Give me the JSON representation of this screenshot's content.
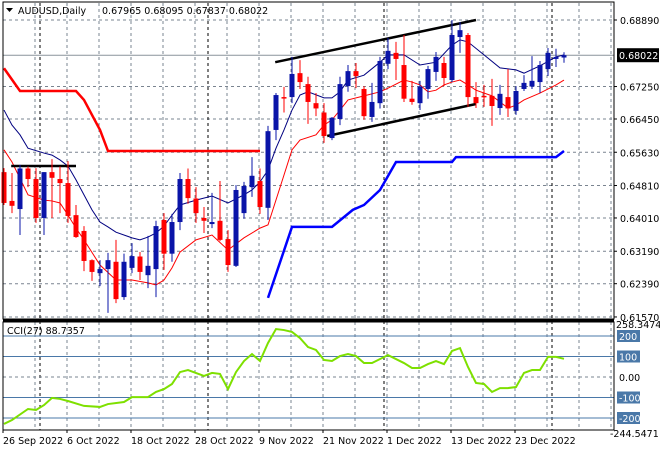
{
  "header": {
    "symbol_timeframe": "AUDUSD,Daily",
    "ohlc_text": "0.67965 0.68095 0.67837 0.68022"
  },
  "colors": {
    "bull": "#0a14a8",
    "bear": "#ff0000",
    "ma_fast": "#000080",
    "ma_slow": "#ff0000",
    "upper_band": "#ff0000",
    "lower_band": "#0000ff",
    "trendline": "#000000",
    "cci": "#7ee000",
    "cci_level": "#4a78a8",
    "grid": "#7a8490"
  },
  "chart_data": {
    "type": "candlestick",
    "title": "AUDUSD,Daily",
    "y_ticks": [
      "0.68890",
      "0.67250",
      "0.66450",
      "0.65630",
      "0.64810",
      "0.64010",
      "0.63190",
      "0.62390",
      "0.61570"
    ],
    "current_price": "0.68022",
    "ylim": [
      0.6157,
      0.6905
    ],
    "x_ticks": [
      {
        "label": "26 Sep 2022",
        "bar": 0
      },
      {
        "label": "6 Oct 2022",
        "bar": 8
      },
      {
        "label": "18 Oct 2022",
        "bar": 16
      },
      {
        "label": "28 Oct 2022",
        "bar": 24
      },
      {
        "label": "9 Nov 2022",
        "bar": 32
      },
      {
        "label": "21 Nov 2022",
        "bar": 40
      },
      {
        "label": "1 Dec 2022",
        "bar": 48
      },
      {
        "label": "13 Dec 2022",
        "bar": 56
      },
      {
        "label": "23 Dec 2022",
        "bar": 64
      }
    ],
    "month_separators": [
      5,
      26,
      48,
      69
    ],
    "ohlc": [
      [
        0.6514,
        0.6524,
        0.6433,
        0.6438
      ],
      [
        0.6443,
        0.6512,
        0.6413,
        0.6431
      ],
      [
        0.6423,
        0.6532,
        0.6359,
        0.6523
      ],
      [
        0.6523,
        0.6528,
        0.6477,
        0.6497
      ],
      [
        0.6497,
        0.6524,
        0.6389,
        0.6401
      ],
      [
        0.6401,
        0.6514,
        0.6359,
        0.6514
      ],
      [
        0.6514,
        0.6546,
        0.6401,
        0.65
      ],
      [
        0.6497,
        0.6528,
        0.6413,
        0.6487
      ],
      [
        0.6487,
        0.6541,
        0.6389,
        0.6406
      ],
      [
        0.6408,
        0.6433,
        0.6352,
        0.6354
      ],
      [
        0.6369,
        0.6381,
        0.627,
        0.6295
      ],
      [
        0.6297,
        0.6299,
        0.6246,
        0.6268
      ],
      [
        0.6265,
        0.6297,
        0.6233,
        0.6275
      ],
      [
        0.6275,
        0.6315,
        0.6167,
        0.6297
      ],
      [
        0.6293,
        0.6347,
        0.6191,
        0.6201
      ],
      [
        0.6206,
        0.6313,
        0.6199,
        0.6293
      ],
      [
        0.6278,
        0.6339,
        0.6265,
        0.6307
      ],
      [
        0.6306,
        0.6317,
        0.6248,
        0.6268
      ],
      [
        0.626,
        0.6357,
        0.6228,
        0.6283
      ],
      [
        0.6275,
        0.6394,
        0.6206,
        0.6381
      ],
      [
        0.6396,
        0.6413,
        0.6273,
        0.6313
      ],
      [
        0.6313,
        0.6411,
        0.6293,
        0.6391
      ],
      [
        0.6391,
        0.6512,
        0.6371,
        0.6497
      ],
      [
        0.6497,
        0.6523,
        0.6436,
        0.645
      ],
      [
        0.6449,
        0.6477,
        0.6389,
        0.6413
      ],
      [
        0.6401,
        0.6428,
        0.6364,
        0.6394
      ],
      [
        0.6386,
        0.6463,
        0.6376,
        0.6391
      ],
      [
        0.6394,
        0.6492,
        0.6344,
        0.6347
      ],
      [
        0.6349,
        0.6371,
        0.6268,
        0.6285
      ],
      [
        0.6283,
        0.6482,
        0.628,
        0.647
      ],
      [
        0.6413,
        0.649,
        0.6399,
        0.648
      ],
      [
        0.6477,
        0.6551,
        0.6453,
        0.6505
      ],
      [
        0.6492,
        0.6523,
        0.6411,
        0.6428
      ],
      [
        0.6426,
        0.6628,
        0.6396,
        0.6615
      ],
      [
        0.6618,
        0.6709,
        0.6593,
        0.6704
      ],
      [
        0.6699,
        0.6724,
        0.6661,
        0.6698
      ],
      [
        0.6699,
        0.6798,
        0.6684,
        0.6756
      ],
      [
        0.6758,
        0.679,
        0.6719,
        0.6736
      ],
      [
        0.6731,
        0.6749,
        0.6633,
        0.6687
      ],
      [
        0.6684,
        0.6709,
        0.6652,
        0.6671
      ],
      [
        0.6661,
        0.6684,
        0.6586,
        0.6603
      ],
      [
        0.6598,
        0.665,
        0.6593,
        0.6648
      ],
      [
        0.6645,
        0.6749,
        0.663,
        0.6731
      ],
      [
        0.6726,
        0.6778,
        0.6712,
        0.6763
      ],
      [
        0.6763,
        0.6783,
        0.6721,
        0.6751
      ],
      [
        0.6719,
        0.6726,
        0.6643,
        0.6652
      ],
      [
        0.665,
        0.6734,
        0.6638,
        0.6687
      ],
      [
        0.6684,
        0.6798,
        0.6671,
        0.6788
      ],
      [
        0.6781,
        0.6845,
        0.6768,
        0.6813
      ],
      [
        0.6808,
        0.6835,
        0.6741,
        0.6793
      ],
      [
        0.6778,
        0.6852,
        0.6687,
        0.6695
      ],
      [
        0.6695,
        0.6739,
        0.668,
        0.6687
      ],
      [
        0.6684,
        0.6739,
        0.6667,
        0.6725
      ],
      [
        0.6719,
        0.6776,
        0.6695,
        0.6768
      ],
      [
        0.6761,
        0.681,
        0.6739,
        0.6798
      ],
      [
        0.6783,
        0.6798,
        0.6726,
        0.6746
      ],
      [
        0.6741,
        0.6889,
        0.6736,
        0.6852
      ],
      [
        0.6847,
        0.6884,
        0.6808,
        0.6864
      ],
      [
        0.6852,
        0.6857,
        0.6675,
        0.6699
      ],
      [
        0.6699,
        0.6736,
        0.6672,
        0.6684
      ],
      [
        0.6702,
        0.6729,
        0.6675,
        0.6699
      ],
      [
        0.6702,
        0.6744,
        0.6628,
        0.6677
      ],
      [
        0.6672,
        0.6729,
        0.6655,
        0.6707
      ],
      [
        0.6699,
        0.6768,
        0.665,
        0.6671
      ],
      [
        0.6665,
        0.6726,
        0.6655,
        0.6714
      ],
      [
        0.6719,
        0.6753,
        0.6714,
        0.6734
      ],
      [
        0.6725,
        0.68,
        0.6719,
        0.6739
      ],
      [
        0.6736,
        0.6788,
        0.6709,
        0.6778
      ],
      [
        0.6768,
        0.682,
        0.6751,
        0.6808
      ],
      [
        0.6793,
        0.6818,
        0.6773,
        0.6798
      ],
      [
        0.67965,
        0.68095,
        0.67837,
        0.68022
      ]
    ],
    "overlays": [
      {
        "kind": "ma_fast",
        "points": [
          [
            0,
            0.6667
          ],
          [
            1,
            0.663
          ],
          [
            2,
            0.6606
          ],
          [
            3,
            0.6573
          ],
          [
            5,
            0.6561
          ],
          [
            6,
            0.6556
          ],
          [
            7,
            0.6544
          ],
          [
            8,
            0.6529
          ],
          [
            9,
            0.6495
          ],
          [
            10,
            0.6458
          ],
          [
            11,
            0.6421
          ],
          [
            12,
            0.6391
          ],
          [
            13,
            0.6379
          ],
          [
            14,
            0.6366
          ],
          [
            16,
            0.6352
          ],
          [
            17,
            0.6347
          ],
          [
            18,
            0.6354
          ],
          [
            19,
            0.6364
          ],
          [
            20,
            0.6381
          ],
          [
            21,
            0.6408
          ],
          [
            22,
            0.6433
          ],
          [
            24,
            0.6445
          ],
          [
            26,
            0.6455
          ],
          [
            28,
            0.6438
          ],
          [
            30,
            0.6458
          ],
          [
            31,
            0.647
          ],
          [
            32,
            0.649
          ],
          [
            33,
            0.6519
          ],
          [
            34,
            0.6573
          ],
          [
            35,
            0.6618
          ],
          [
            36,
            0.6667
          ],
          [
            37,
            0.6704
          ],
          [
            38,
            0.6712
          ],
          [
            40,
            0.6697
          ],
          [
            41,
            0.6697
          ],
          [
            42,
            0.6712
          ],
          [
            43,
            0.6741
          ],
          [
            45,
            0.6753
          ],
          [
            47,
            0.6785
          ],
          [
            48,
            0.6803
          ],
          [
            50,
            0.6803
          ],
          [
            52,
            0.6778
          ],
          [
            54,
            0.6785
          ],
          [
            56,
            0.6827
          ],
          [
            57,
            0.684
          ],
          [
            58,
            0.6835
          ],
          [
            60,
            0.6803
          ],
          [
            62,
            0.6771
          ],
          [
            64,
            0.6766
          ],
          [
            65,
            0.6758
          ],
          [
            67,
            0.6776
          ],
          [
            69,
            0.6798
          ],
          [
            70,
            0.6803
          ]
        ]
      },
      {
        "kind": "ma_slow",
        "points": [
          [
            0,
            0.6569
          ],
          [
            1,
            0.6539
          ],
          [
            3,
            0.6458
          ],
          [
            5,
            0.6445
          ],
          [
            6,
            0.6443
          ],
          [
            7,
            0.6438
          ],
          [
            8,
            0.6408
          ],
          [
            9,
            0.6376
          ],
          [
            10,
            0.6347
          ],
          [
            12,
            0.6285
          ],
          [
            14,
            0.6248
          ],
          [
            16,
            0.6248
          ],
          [
            18,
            0.6241
          ],
          [
            19,
            0.6236
          ],
          [
            20,
            0.6248
          ],
          [
            21,
            0.6278
          ],
          [
            22,
            0.6317
          ],
          [
            24,
            0.6347
          ],
          [
            26,
            0.6359
          ],
          [
            28,
            0.6322
          ],
          [
            30,
            0.6352
          ],
          [
            32,
            0.6376
          ],
          [
            33,
            0.6384
          ],
          [
            35,
            0.6507
          ],
          [
            36,
            0.6569
          ],
          [
            37,
            0.6593
          ],
          [
            39,
            0.6606
          ],
          [
            40,
            0.663
          ],
          [
            41,
            0.6643
          ],
          [
            42,
            0.6667
          ],
          [
            43,
            0.6692
          ],
          [
            45,
            0.6702
          ],
          [
            47,
            0.6712
          ],
          [
            48,
            0.6721
          ],
          [
            50,
            0.6741
          ],
          [
            51,
            0.6736
          ],
          [
            52,
            0.6729
          ],
          [
            53,
            0.6712
          ],
          [
            54,
            0.6716
          ],
          [
            55,
            0.6729
          ],
          [
            56,
            0.6736
          ],
          [
            57,
            0.6741
          ],
          [
            58,
            0.6729
          ],
          [
            59,
            0.6716
          ],
          [
            61,
            0.6702
          ],
          [
            63,
            0.6672
          ],
          [
            64,
            0.6679
          ],
          [
            65,
            0.6692
          ],
          [
            67,
            0.6709
          ],
          [
            69,
            0.6729
          ],
          [
            70,
            0.6741
          ]
        ]
      },
      {
        "kind": "upper_band",
        "points": [
          [
            0,
            0.677
          ],
          [
            2,
            0.6714
          ],
          [
            9,
            0.6714
          ],
          [
            10,
            0.6692
          ],
          [
            12,
            0.6618
          ],
          [
            13,
            0.6566
          ],
          [
            32,
            0.6566
          ]
        ]
      },
      {
        "kind": "lower_band",
        "points": [
          [
            33,
            0.6204
          ],
          [
            36,
            0.6379
          ],
          [
            41,
            0.6379
          ],
          [
            43.6,
            0.6421
          ],
          [
            45,
            0.6433
          ],
          [
            47,
            0.647
          ],
          [
            49,
            0.6539
          ],
          [
            56,
            0.6539
          ],
          [
            56.5,
            0.6551
          ],
          [
            69,
            0.6551
          ],
          [
            70,
            0.6566
          ]
        ]
      },
      {
        "kind": "trendline",
        "points": [
          [
            33.9,
            0.6785
          ],
          [
            59,
            0.6889
          ]
        ]
      },
      {
        "kind": "trendline",
        "points": [
          [
            40.4,
            0.6603
          ],
          [
            59,
            0.6682
          ]
        ]
      },
      {
        "kind": "trendline",
        "points": [
          [
            0.9,
            0.6529
          ],
          [
            9,
            0.6529
          ]
        ]
      }
    ],
    "indicator": {
      "label": "CCI(27) 88.7357",
      "ylim": [
        -244.5471,
        258.3474
      ],
      "max_label": "258.3474",
      "min_label": "-244.5471",
      "levels": [
        "200",
        "100",
        "0.00",
        "-100",
        "-200"
      ],
      "level_values": [
        200,
        100,
        0,
        -100,
        -200
      ],
      "points": [
        [
          0,
          -229
        ],
        [
          1,
          -210
        ],
        [
          3,
          -156
        ],
        [
          4,
          -161
        ],
        [
          5,
          -137
        ],
        [
          6,
          -102
        ],
        [
          7,
          -107
        ],
        [
          8,
          -117
        ],
        [
          10,
          -141
        ],
        [
          12,
          -146
        ],
        [
          13,
          -132
        ],
        [
          15,
          -122
        ],
        [
          16,
          -98
        ],
        [
          18,
          -98
        ],
        [
          19,
          -73
        ],
        [
          20,
          -59
        ],
        [
          21,
          -34
        ],
        [
          22,
          24
        ],
        [
          23,
          34
        ],
        [
          25,
          5
        ],
        [
          26,
          20
        ],
        [
          27,
          15
        ],
        [
          28,
          -59
        ],
        [
          29,
          24
        ],
        [
          30,
          78
        ],
        [
          31,
          112
        ],
        [
          32,
          78
        ],
        [
          33,
          166
        ],
        [
          34,
          234
        ],
        [
          35,
          229
        ],
        [
          36,
          220
        ],
        [
          37,
          190
        ],
        [
          38,
          146
        ],
        [
          39,
          132
        ],
        [
          40,
          83
        ],
        [
          41,
          78
        ],
        [
          42,
          102
        ],
        [
          43,
          112
        ],
        [
          44,
          102
        ],
        [
          45,
          68
        ],
        [
          46,
          68
        ],
        [
          48,
          107
        ],
        [
          50,
          68
        ],
        [
          51,
          44
        ],
        [
          52,
          44
        ],
        [
          53,
          63
        ],
        [
          54,
          78
        ],
        [
          55,
          63
        ],
        [
          56,
          127
        ],
        [
          57,
          141
        ],
        [
          58,
          49
        ],
        [
          59,
          -29
        ],
        [
          60,
          -34
        ],
        [
          61,
          -73
        ],
        [
          62,
          -54
        ],
        [
          63,
          -54
        ],
        [
          64,
          -49
        ],
        [
          65,
          20
        ],
        [
          66,
          34
        ],
        [
          67,
          34
        ],
        [
          68,
          98
        ],
        [
          69,
          98
        ],
        [
          70,
          88.7
        ]
      ]
    }
  }
}
